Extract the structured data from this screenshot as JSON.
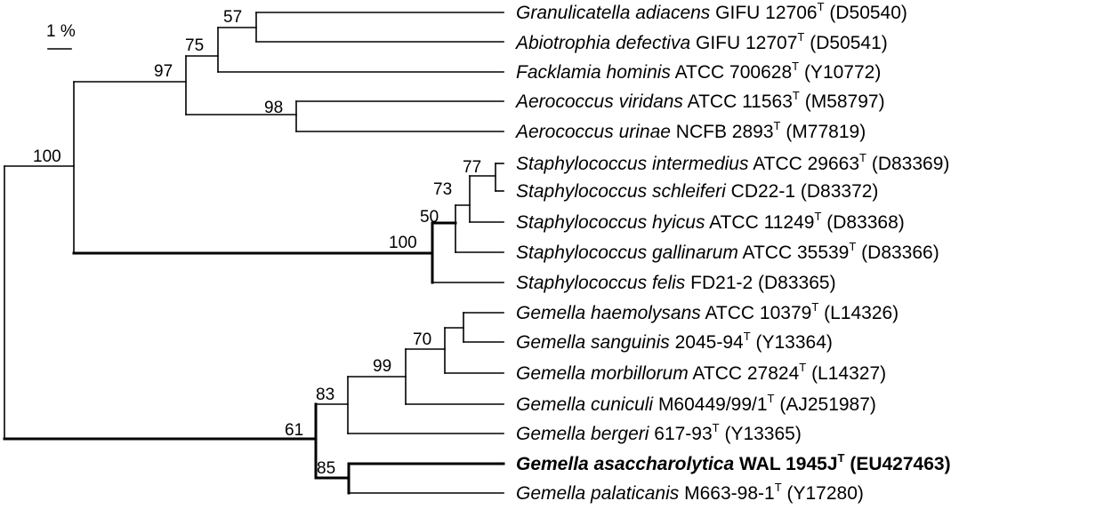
{
  "scale_bar": {
    "label": "1 %"
  },
  "taxa": [
    {
      "genus": "Granulicatella",
      "species": "adiacens",
      "strain": "GIFU 12706",
      "type_strain": true,
      "accession": "(D50540)",
      "bold": false
    },
    {
      "genus": "Abiotrophia",
      "species": "defectiva",
      "strain": "GIFU 12707",
      "type_strain": true,
      "accession": "(D50541)",
      "bold": false
    },
    {
      "genus": "Facklamia",
      "species": "hominis",
      "strain": "ATCC 700628",
      "type_strain": true,
      "accession": "(Y10772)",
      "bold": false
    },
    {
      "genus": "Aerococcus",
      "species": "viridans",
      "strain": "ATCC 11563",
      "type_strain": true,
      "accession": "(M58797)",
      "bold": false
    },
    {
      "genus": "Aerococcus",
      "species": "urinae",
      "strain": "NCFB 2893",
      "type_strain": true,
      "accession": "(M77819)",
      "bold": false
    },
    {
      "genus": "Staphylococcus",
      "species": "intermedius",
      "strain": "ATCC 29663",
      "type_strain": true,
      "accession": "(D83369)",
      "bold": false
    },
    {
      "genus": "Staphylococcus",
      "species": "schleiferi",
      "strain": "CD22-1",
      "type_strain": false,
      "accession": "(D83372)",
      "bold": false
    },
    {
      "genus": "Staphylococcus",
      "species": "hyicus",
      "strain": "ATCC 11249",
      "type_strain": true,
      "accession": "(D83368)",
      "bold": false
    },
    {
      "genus": "Staphylococcus",
      "species": "gallinarum",
      "strain": "ATCC 35539",
      "type_strain": true,
      "accession": "(D83366)",
      "bold": false
    },
    {
      "genus": "Staphylococcus",
      "species": "felis",
      "strain": "FD21-2",
      "type_strain": false,
      "accession": "(D83365)",
      "bold": false
    },
    {
      "genus": "Gemella",
      "species": "haemolysans",
      "strain": "ATCC 10379",
      "type_strain": true,
      "accession": "(L14326)",
      "bold": false
    },
    {
      "genus": "Gemella",
      "species": "sanguinis",
      "strain": "2045-94",
      "type_strain": true,
      "accession": "(Y13364)",
      "bold": false
    },
    {
      "genus": "Gemella",
      "species": "morbillorum",
      "strain": "ATCC 27824",
      "type_strain": true,
      "accession": "(L14327)",
      "bold": false
    },
    {
      "genus": "Gemella",
      "species": "cuniculi",
      "strain": "M60449/99/1",
      "type_strain": true,
      "accession": "(AJ251987)",
      "bold": false
    },
    {
      "genus": "Gemella",
      "species": "bergeri",
      "strain": "617-93",
      "type_strain": true,
      "accession": "(Y13365)",
      "bold": false
    },
    {
      "genus": "Gemella",
      "species": "asaccharolytica",
      "strain": "WAL 1945J",
      "type_strain": true,
      "accession": "(EU427463)",
      "bold": true
    },
    {
      "genus": "Gemella",
      "species": "palaticanis",
      "strain": "M663-98-1",
      "type_strain": true,
      "accession": "(Y17280)",
      "bold": false
    }
  ],
  "type_marker": "T",
  "bootstrap_values": [
    "57",
    "75",
    "97",
    "98",
    "100",
    "77",
    "73",
    "50",
    "100",
    "70",
    "99",
    "83",
    "61",
    "85"
  ]
}
